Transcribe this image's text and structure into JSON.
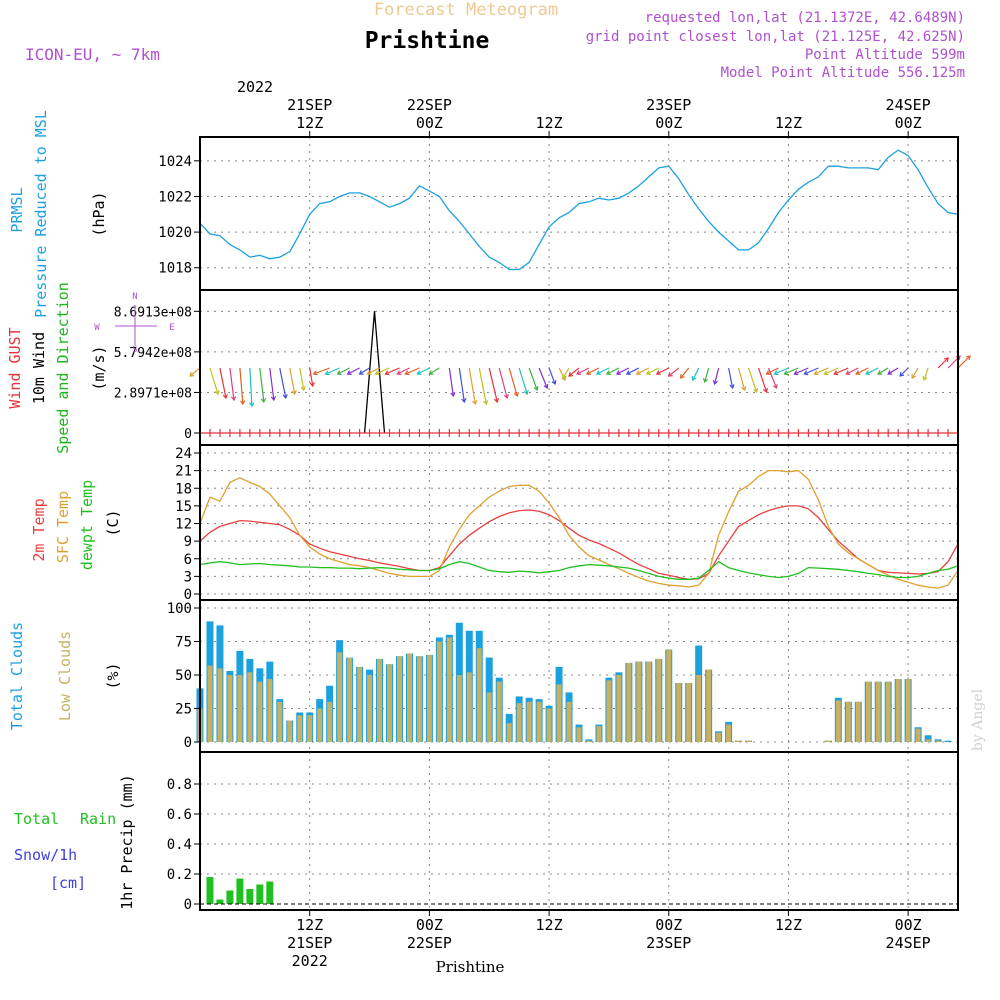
{
  "header": {
    "subtitle": "Forecast Meteogram",
    "title": "Prishtine",
    "model": "ICON-EU, ~ 7km",
    "requested": "requested lon,lat (21.1372E, 42.6489N)",
    "grid_point": "grid point closest lon,lat (21.125E, 42.625N)",
    "point_altitude": "Point Altitude 599m",
    "model_altitude": "Model Point Altitude 556.125m",
    "footer_station": "Prishtine",
    "watermark": "by Angel"
  },
  "colors": {
    "prmsl": "#1ba0e0",
    "gust": "#e8323c",
    "wind_label": "#1ab81a",
    "t2m": "#e84040",
    "sfc": "#e0a030",
    "dewpt": "#20c020",
    "total_clouds": "#1ba0e0",
    "low_clouds": "#c8b060",
    "rain": "#20c020",
    "snow": "#4040e0",
    "purple": "#b050d0",
    "orange_header": "#f0c890"
  },
  "time_axis": {
    "top": {
      "year": "2022",
      "ticks": [
        {
          "hour": 11,
          "l1": "21SEP",
          "l2": "12Z"
        },
        {
          "hour": 23,
          "l1": "22SEP",
          "l2": "00Z"
        },
        {
          "hour": 35,
          "l1": "",
          "l2": "12Z"
        },
        {
          "hour": 47,
          "l1": "23SEP",
          "l2": "00Z"
        },
        {
          "hour": 59,
          "l1": "",
          "l2": "12Z"
        },
        {
          "hour": 71,
          "l1": "24SEP",
          "l2": "00Z"
        }
      ]
    },
    "bottom": {
      "ticks": [
        {
          "hour": 11,
          "l1": "12Z",
          "l2": "21SEP",
          "l3": "2022"
        },
        {
          "hour": 23,
          "l1": "00Z",
          "l2": "22SEP",
          "l3": ""
        },
        {
          "hour": 35,
          "l1": "12Z",
          "l2": "",
          "l3": ""
        },
        {
          "hour": 47,
          "l1": "00Z",
          "l2": "23SEP",
          "l3": ""
        },
        {
          "hour": 59,
          "l1": "12Z",
          "l2": "",
          "l3": ""
        },
        {
          "hour": 71,
          "l1": "00Z",
          "l2": "24SEP",
          "l3": ""
        }
      ]
    },
    "hours_start": 0,
    "hours_end": 76
  },
  "panels": {
    "prmsl": {
      "label1": "PRMSL",
      "label2": "Pressure Reduced to MSL",
      "unit": "(hPa)",
      "yticks": [
        "1018",
        "1020",
        "1022",
        "1024"
      ]
    },
    "wind": {
      "label_gust": "Wind GUST",
      "label_wind": "10m Wind",
      "label_dir": "Speed and Direction",
      "unit": "(m/s)",
      "yticks": [
        "0",
        "2.8971e+08",
        "5.7942e+08",
        "8.6913e+08"
      ],
      "compass": {
        "n": "N",
        "s": "S",
        "e": "E",
        "w": "W"
      }
    },
    "temp": {
      "label1": "2m Temp",
      "label2": "SFC Temp",
      "label3": "dewpt Temp",
      "unit": "(C)",
      "yticks": [
        "0",
        "3",
        "6",
        "9",
        "12",
        "15",
        "18",
        "21",
        "24"
      ]
    },
    "clouds": {
      "label1": "Total Clouds",
      "label2": "Low Clouds",
      "unit": "(%)",
      "yticks": [
        "0",
        "25",
        "50",
        "75",
        "100"
      ]
    },
    "precip": {
      "label_rain1": "Total",
      "label_rain2": "Rain",
      "label_snow": "Snow/1h",
      "label_snow_unit": "[cm]",
      "unit": "1hr Precip (mm)",
      "yticks": [
        "0",
        "0.2",
        "0.4",
        "0.6",
        "0.8"
      ]
    }
  },
  "chart_data": [
    {
      "type": "line",
      "name": "PRMSL",
      "ylim": [
        1017.2,
        1025.0
      ],
      "x": [
        0,
        1,
        2,
        3,
        4,
        5,
        6,
        7,
        8,
        9,
        10,
        11,
        12,
        13,
        14,
        15,
        16,
        17,
        18,
        19,
        20,
        21,
        22,
        23,
        24,
        25,
        26,
        27,
        28,
        29,
        30,
        31,
        32,
        33,
        34,
        35,
        36,
        37,
        38,
        39,
        40,
        41,
        42,
        43,
        44,
        45,
        46,
        47,
        48,
        49,
        50,
        51,
        52,
        53,
        54,
        55,
        56,
        57,
        58,
        59,
        60,
        61,
        62,
        63,
        64,
        65,
        66,
        67,
        68,
        69,
        70,
        71,
        72,
        73,
        74,
        75,
        76
      ],
      "values": [
        1020.5,
        1019.9,
        1019.8,
        1019.3,
        1019.0,
        1018.6,
        1018.7,
        1018.5,
        1018.6,
        1018.9,
        1019.9,
        1021.0,
        1021.6,
        1021.7,
        1022.0,
        1022.2,
        1022.2,
        1022.0,
        1021.7,
        1021.4,
        1021.6,
        1021.9,
        1022.6,
        1022.3,
        1022.0,
        1021.2,
        1020.6,
        1019.9,
        1019.2,
        1018.6,
        1018.3,
        1017.9,
        1017.9,
        1018.3,
        1019.3,
        1020.3,
        1020.8,
        1021.1,
        1021.6,
        1021.7,
        1021.9,
        1021.8,
        1021.9,
        1022.2,
        1022.6,
        1023.1,
        1023.6,
        1023.7,
        1023.0,
        1022.1,
        1021.3,
        1020.6,
        1020.0,
        1019.5,
        1019.0,
        1019.0,
        1019.4,
        1020.2,
        1021.1,
        1021.8,
        1022.4,
        1022.8,
        1023.1,
        1023.7,
        1023.7,
        1023.6,
        1023.6,
        1023.6,
        1023.5,
        1024.2,
        1024.6,
        1024.3,
        1023.5,
        1022.5,
        1021.6,
        1021.1,
        1021.0
      ]
    },
    {
      "type": "line",
      "name": "Wind GUST",
      "ylim": [
        0,
        950000000.0
      ],
      "x": [
        16.5,
        17.5,
        18.5
      ],
      "values": [
        0,
        870000000.0,
        0
      ],
      "baseline_marker": "+"
    },
    {
      "type": "line",
      "name": "temperatures",
      "ylim": [
        0,
        24
      ],
      "x": [
        0,
        1,
        2,
        3,
        4,
        5,
        6,
        7,
        8,
        9,
        10,
        11,
        12,
        13,
        14,
        15,
        16,
        17,
        18,
        19,
        20,
        21,
        22,
        23,
        24,
        25,
        26,
        27,
        28,
        29,
        30,
        31,
        32,
        33,
        34,
        35,
        36,
        37,
        38,
        39,
        40,
        41,
        42,
        43,
        44,
        45,
        46,
        47,
        48,
        49,
        50,
        51,
        52,
        53,
        54,
        55,
        56,
        57,
        58,
        59,
        60,
        61,
        62,
        63,
        64,
        65,
        66,
        67,
        68,
        69,
        70,
        71,
        72,
        73,
        74,
        75,
        76
      ],
      "series": [
        {
          "name": "2m Temp",
          "color_key": "t2m",
          "values": [
            9.0,
            10.5,
            11.5,
            12.0,
            12.5,
            12.4,
            12.2,
            12.0,
            11.8,
            11.0,
            10.0,
            8.5,
            7.8,
            7.2,
            6.8,
            6.4,
            6.0,
            5.7,
            5.3,
            5.0,
            4.7,
            4.3,
            4.0,
            4.0,
            4.5,
            6.5,
            8.5,
            10.0,
            11.2,
            12.3,
            13.2,
            13.8,
            14.2,
            14.3,
            14.1,
            13.5,
            12.5,
            11.2,
            10.0,
            9.2,
            8.6,
            7.8,
            7.0,
            6.0,
            5.0,
            4.3,
            3.5,
            3.2,
            2.8,
            2.5,
            2.6,
            3.5,
            6.5,
            9.0,
            11.5,
            12.5,
            13.5,
            14.2,
            14.7,
            15.0,
            15.0,
            14.5,
            13.0,
            11.0,
            9.0,
            7.5,
            6.0,
            5.0,
            4.0,
            3.7,
            3.6,
            3.5,
            3.4,
            3.5,
            3.8,
            5.5,
            8.5
          ]
        },
        {
          "name": "SFC Temp",
          "color_key": "sfc",
          "values": [
            12.0,
            16.5,
            15.8,
            19.0,
            19.8,
            19.0,
            18.3,
            17.0,
            15.0,
            13.0,
            10.0,
            8.0,
            6.8,
            6.0,
            5.5,
            5.0,
            4.8,
            4.5,
            4.0,
            3.5,
            3.2,
            3.0,
            3.0,
            3.0,
            4.0,
            8.0,
            11.0,
            13.5,
            15.0,
            16.5,
            17.5,
            18.3,
            18.5,
            18.5,
            17.5,
            15.5,
            13.0,
            10.0,
            8.0,
            6.5,
            5.8,
            5.0,
            4.3,
            3.5,
            2.8,
            2.2,
            1.8,
            1.5,
            1.4,
            1.2,
            1.5,
            3.5,
            10.0,
            14.0,
            17.5,
            18.5,
            20.0,
            21.0,
            21.0,
            20.8,
            21.0,
            19.5,
            16.0,
            11.5,
            8.5,
            7.0,
            6.0,
            5.0,
            4.0,
            3.2,
            2.5,
            2.0,
            1.5,
            1.2,
            1.0,
            1.5,
            4.0
          ]
        },
        {
          "name": "dewpt Temp",
          "color_key": "dewpt",
          "values": [
            5.0,
            5.3,
            5.5,
            5.3,
            5.0,
            5.1,
            5.2,
            5.0,
            4.9,
            4.8,
            4.6,
            4.6,
            4.5,
            4.5,
            4.4,
            4.4,
            4.3,
            4.4,
            4.5,
            4.4,
            4.2,
            4.1,
            4.0,
            4.0,
            4.3,
            5.0,
            5.5,
            5.2,
            4.6,
            4.0,
            3.8,
            3.7,
            3.9,
            3.8,
            3.6,
            3.8,
            4.0,
            4.5,
            4.8,
            5.0,
            4.9,
            4.8,
            4.6,
            4.4,
            4.0,
            3.5,
            3.0,
            2.7,
            2.5,
            2.5,
            2.7,
            4.0,
            5.5,
            4.5,
            4.0,
            3.6,
            3.3,
            3.0,
            2.8,
            3.0,
            3.5,
            4.5,
            4.4,
            4.3,
            4.2,
            4.0,
            3.8,
            3.5,
            3.3,
            3.0,
            2.8,
            2.8,
            3.0,
            3.5,
            4.0,
            4.2,
            4.8
          ]
        }
      ]
    },
    {
      "type": "bar",
      "name": "clouds",
      "ylim": [
        0,
        100
      ],
      "x": [
        0,
        1,
        2,
        3,
        4,
        5,
        6,
        7,
        8,
        9,
        10,
        11,
        12,
        13,
        14,
        15,
        16,
        17,
        18,
        19,
        20,
        21,
        22,
        23,
        24,
        25,
        26,
        27,
        28,
        29,
        30,
        31,
        32,
        33,
        34,
        35,
        36,
        37,
        38,
        39,
        40,
        41,
        42,
        43,
        44,
        45,
        46,
        47,
        48,
        49,
        50,
        51,
        52,
        53,
        54,
        55,
        56,
        57,
        58,
        59,
        60,
        61,
        62,
        63,
        64,
        65,
        66,
        67,
        68,
        69,
        70,
        71,
        72,
        73,
        74,
        75,
        76
      ],
      "series": [
        {
          "name": "Total Clouds",
          "color_key": "total_clouds",
          "values": [
            40,
            90,
            87,
            53,
            68,
            62,
            55,
            60,
            32,
            16,
            22,
            22,
            32,
            42,
            76,
            63,
            56,
            54,
            62,
            58,
            64,
            66,
            64,
            65,
            78,
            80,
            89,
            83,
            83,
            63,
            48,
            21,
            34,
            33,
            32,
            27,
            56,
            37,
            13,
            2,
            13,
            48,
            52,
            59,
            60,
            60,
            62,
            69,
            44,
            44,
            72,
            54,
            8,
            15,
            1,
            1,
            0,
            0,
            0,
            0,
            0,
            0,
            0,
            1,
            33,
            30,
            30,
            45,
            45,
            45,
            47,
            47,
            11,
            5,
            2,
            1,
            0
          ]
        },
        {
          "name": "Low Clouds",
          "color_key": "low_clouds",
          "values": [
            25,
            57,
            55,
            50,
            50,
            52,
            45,
            47,
            30,
            16,
            20,
            20,
            25,
            30,
            67,
            63,
            56,
            50,
            62,
            58,
            64,
            66,
            64,
            65,
            75,
            78,
            50,
            52,
            70,
            37,
            45,
            14,
            29,
            30,
            30,
            25,
            43,
            30,
            11,
            1,
            12,
            46,
            50,
            59,
            60,
            60,
            62,
            69,
            44,
            44,
            50,
            54,
            7,
            13,
            1,
            1,
            0,
            0,
            0,
            0,
            0,
            0,
            0,
            1,
            31,
            30,
            30,
            45,
            45,
            45,
            47,
            47,
            10,
            2,
            1,
            0,
            0
          ]
        }
      ]
    },
    {
      "type": "bar",
      "name": "1hr Precip",
      "ylim": [
        0,
        1.0
      ],
      "x": [
        0,
        1,
        2,
        3,
        4,
        5,
        6,
        7
      ],
      "series": [
        {
          "name": "Total Rain",
          "color_key": "rain",
          "values": [
            0.0,
            0.18,
            0.03,
            0.09,
            0.17,
            0.1,
            0.13,
            0.15
          ]
        }
      ]
    }
  ]
}
